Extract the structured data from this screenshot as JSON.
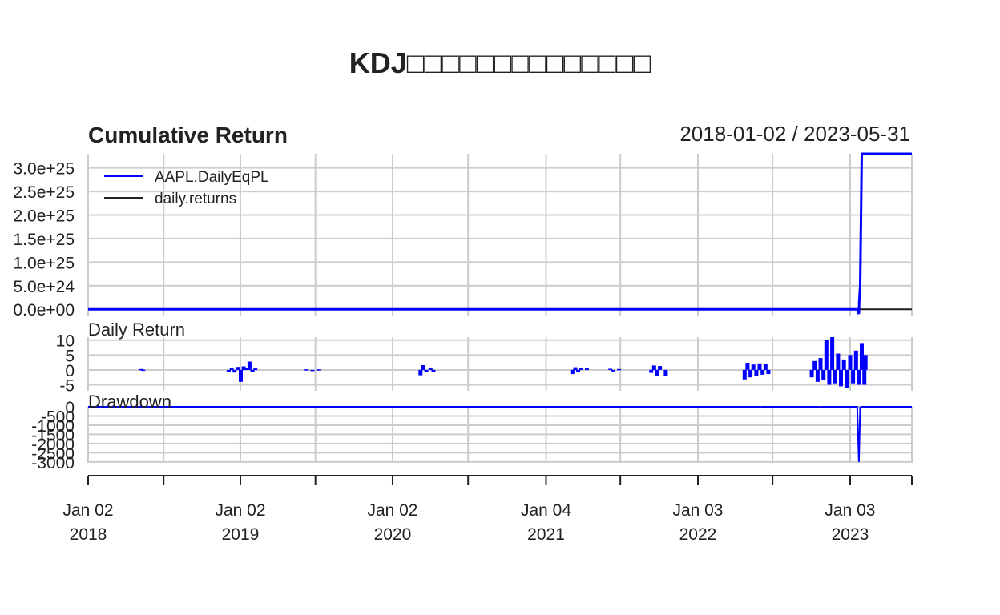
{
  "chart_data": {
    "type": "line",
    "title": "KDJ□□□□□□□□□□□□□□",
    "date_range": "2018-01-02 / 2023-05-31",
    "x_range": [
      "2018-01-02",
      "2023-05-31"
    ],
    "x_ticks": [
      {
        "date": "2018-01-02",
        "line1": "Jan 02",
        "line2": "2018"
      },
      {
        "date": "2018-07-02",
        "line1": "",
        "line2": ""
      },
      {
        "date": "2019-01-02",
        "line1": "Jan 02",
        "line2": "2019"
      },
      {
        "date": "2019-07-01",
        "line1": "",
        "line2": ""
      },
      {
        "date": "2020-01-02",
        "line1": "Jan 02",
        "line2": "2020"
      },
      {
        "date": "2020-07-01",
        "line1": "",
        "line2": ""
      },
      {
        "date": "2021-01-04",
        "line1": "Jan 04",
        "line2": "2021"
      },
      {
        "date": "2021-07-01",
        "line1": "",
        "line2": ""
      },
      {
        "date": "2022-01-03",
        "line1": "Jan 03",
        "line2": "2022"
      },
      {
        "date": "2022-07-01",
        "line1": "",
        "line2": ""
      },
      {
        "date": "2023-01-03",
        "line1": "Jan 03",
        "line2": "2023"
      },
      {
        "date": "2023-05-31",
        "line1": "",
        "line2": ""
      }
    ],
    "panels": {
      "cumulative": {
        "title": "Cumulative Return",
        "ylim": [
          -1.5e+24,
          3.3e+25
        ],
        "y_ticks": [
          {
            "value": 0,
            "label": "0.0e+00"
          },
          {
            "value": 5e+24,
            "label": "5.0e+24"
          },
          {
            "value": 1e+25,
            "label": "1.0e+25"
          },
          {
            "value": 1.5e+25,
            "label": "1.5e+25"
          },
          {
            "value": 2e+25,
            "label": "2.0e+25"
          },
          {
            "value": 2.5e+25,
            "label": "2.5e+25"
          },
          {
            "value": 3e+25,
            "label": "3.0e+25"
          }
        ],
        "legend_position": "top-left",
        "series": [
          {
            "name": "AAPL.DailyEqPL",
            "color": "#0000ff",
            "points": [
              [
                "2018-01-02",
                0
              ],
              [
                "2023-01-20",
                0
              ],
              [
                "2023-01-24",
                -1e+24
              ],
              [
                "2023-01-25",
                2e+24
              ],
              [
                "2023-01-27",
                5e+24
              ],
              [
                "2023-01-31",
                3.3e+25
              ],
              [
                "2023-05-31",
                3.3e+25
              ]
            ]
          },
          {
            "name": "daily.returns",
            "color": "#222222",
            "points": [
              [
                "2018-01-02",
                0
              ],
              [
                "2023-05-31",
                0
              ]
            ]
          }
        ]
      },
      "daily_return": {
        "title": "Daily Return",
        "ylim": [
          -7,
          11
        ],
        "y_ticks": [
          {
            "value": -5,
            "label": "-5"
          },
          {
            "value": 0,
            "label": "0"
          },
          {
            "value": 5,
            "label": "5"
          },
          {
            "value": 10,
            "label": "10"
          }
        ],
        "color": "#0000ff",
        "bars": [
          [
            "2018-05-08",
            0.3
          ],
          [
            "2018-05-14",
            0.1
          ],
          [
            "2018-12-05",
            -0.8
          ],
          [
            "2018-12-12",
            0.6
          ],
          [
            "2018-12-19",
            -0.9
          ],
          [
            "2018-12-27",
            1.0
          ],
          [
            "2019-01-03",
            -4.0
          ],
          [
            "2019-01-10",
            1.2
          ],
          [
            "2019-01-17",
            0.8
          ],
          [
            "2019-01-24",
            2.8
          ],
          [
            "2019-01-31",
            -0.7
          ],
          [
            "2019-02-07",
            0.5
          ],
          [
            "2019-06-10",
            0.2
          ],
          [
            "2019-06-24",
            -0.3
          ],
          [
            "2019-07-08",
            0.2
          ],
          [
            "2020-03-09",
            -1.8
          ],
          [
            "2020-03-16",
            1.6
          ],
          [
            "2020-03-23",
            -0.8
          ],
          [
            "2020-04-02",
            0.7
          ],
          [
            "2020-04-09",
            -0.6
          ],
          [
            "2021-03-08",
            -1.4
          ],
          [
            "2021-03-15",
            0.9
          ],
          [
            "2021-03-22",
            -0.7
          ],
          [
            "2021-03-29",
            0.6
          ],
          [
            "2021-04-12",
            0.5
          ],
          [
            "2021-06-07",
            0.4
          ],
          [
            "2021-06-14",
            -0.5
          ],
          [
            "2021-06-28",
            0.3
          ],
          [
            "2021-09-13",
            -1.0
          ],
          [
            "2021-09-20",
            1.5
          ],
          [
            "2021-09-27",
            -1.9
          ],
          [
            "2021-10-04",
            1.3
          ],
          [
            "2021-10-18",
            -2.0
          ],
          [
            "2022-04-25",
            -3.2
          ],
          [
            "2022-05-02",
            2.4
          ],
          [
            "2022-05-09",
            -2.5
          ],
          [
            "2022-05-16",
            1.8
          ],
          [
            "2022-05-23",
            -2.1
          ],
          [
            "2022-05-31",
            2.2
          ],
          [
            "2022-06-07",
            -1.6
          ],
          [
            "2022-06-14",
            2.0
          ],
          [
            "2022-06-21",
            -1.4
          ],
          [
            "2022-10-03",
            -2.5
          ],
          [
            "2022-10-10",
            3.0
          ],
          [
            "2022-10-17",
            -4.0
          ],
          [
            "2022-10-24",
            4.0
          ],
          [
            "2022-10-31",
            -3.5
          ],
          [
            "2022-11-07",
            10.0
          ],
          [
            "2022-11-14",
            -5.0
          ],
          [
            "2022-11-21",
            11.0
          ],
          [
            "2022-11-28",
            -4.5
          ],
          [
            "2022-12-05",
            5.5
          ],
          [
            "2022-12-12",
            -5.5
          ],
          [
            "2022-12-19",
            3.5
          ],
          [
            "2022-12-27",
            -6.0
          ],
          [
            "2023-01-03",
            5.0
          ],
          [
            "2023-01-10",
            -4.5
          ],
          [
            "2023-01-17",
            6.5
          ],
          [
            "2023-01-24",
            -5.0
          ],
          [
            "2023-01-31",
            9.0
          ],
          [
            "2023-02-06",
            -5.0
          ],
          [
            "2023-02-09",
            5.0
          ]
        ]
      },
      "drawdown": {
        "title": "Drawdown",
        "ylim": [
          -3050,
          0
        ],
        "y_ticks": [
          {
            "value": 0,
            "label": "0"
          },
          {
            "value": -500,
            "label": "-500"
          },
          {
            "value": -1000,
            "label": "-1000"
          },
          {
            "value": -1500,
            "label": "-1500"
          },
          {
            "value": -2000,
            "label": "-2000"
          },
          {
            "value": -2500,
            "label": "-2500"
          },
          {
            "value": -3000,
            "label": "-3000"
          }
        ],
        "color": "#0000ff",
        "points": [
          [
            "2018-01-02",
            0
          ],
          [
            "2022-06-01",
            0
          ],
          [
            "2022-06-03",
            -20
          ],
          [
            "2022-06-06",
            0
          ],
          [
            "2022-10-20",
            0
          ],
          [
            "2022-10-24",
            -25
          ],
          [
            "2022-10-27",
            0
          ],
          [
            "2023-01-20",
            0
          ],
          [
            "2023-01-24",
            -3000
          ],
          [
            "2023-01-27",
            -30
          ],
          [
            "2023-01-31",
            0
          ],
          [
            "2023-05-31",
            0
          ]
        ]
      }
    }
  }
}
